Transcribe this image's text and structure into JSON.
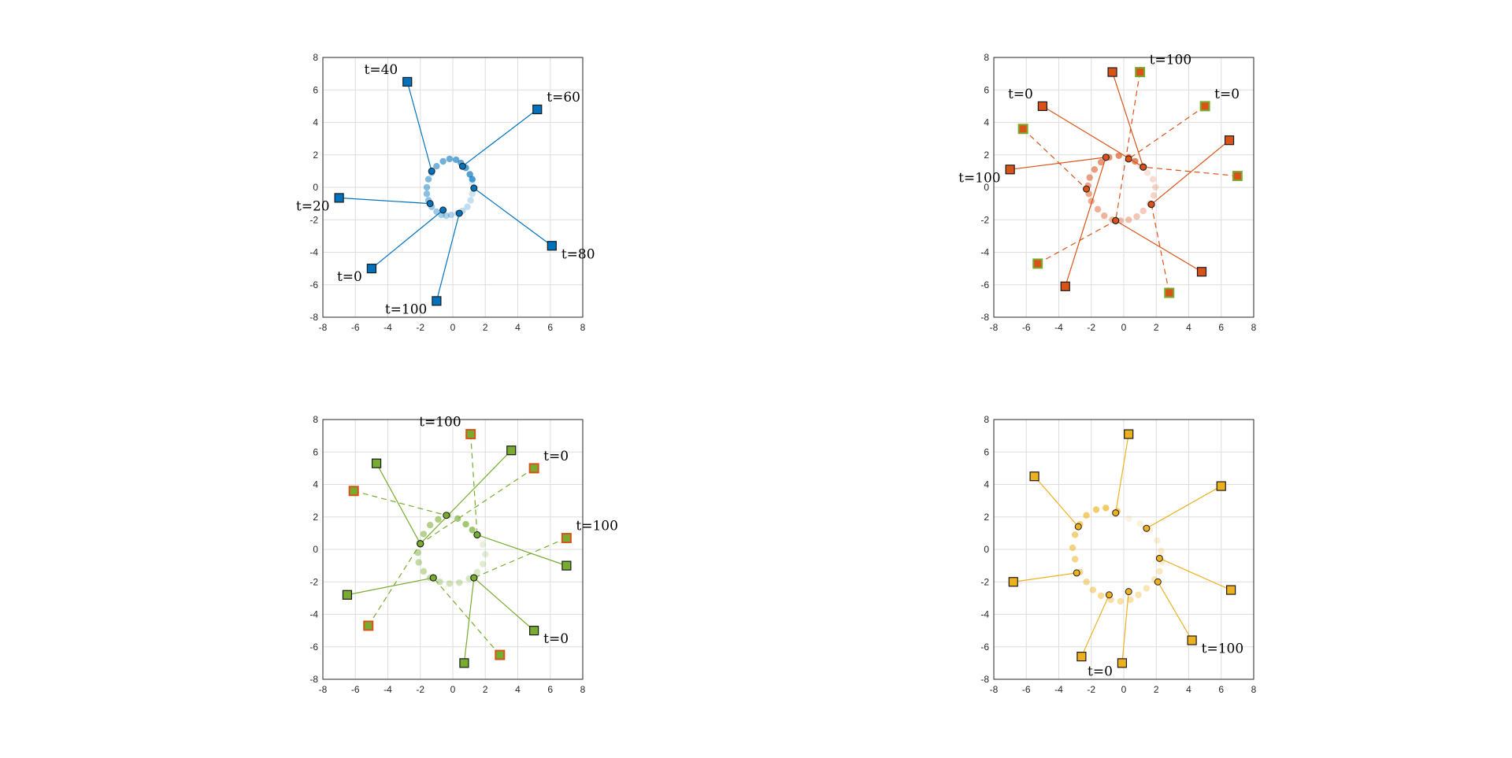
{
  "chart_data": [
    {
      "type": "scatter",
      "title": "",
      "xlabel": "",
      "ylabel": "",
      "xlim": [
        -8,
        8
      ],
      "ylim": [
        -8,
        8
      ],
      "xticks": [
        -8,
        -6,
        -4,
        -2,
        0,
        2,
        4,
        6,
        8
      ],
      "yticks": [
        -8,
        -6,
        -4,
        -2,
        0,
        2,
        4,
        6,
        8
      ],
      "grid": true,
      "color": "#0072BD",
      "trail": [
        [
          1.2,
          0.3
        ],
        [
          1.3,
          0.0
        ],
        [
          1.2,
          -0.4
        ],
        [
          1.1,
          -0.8
        ],
        [
          0.9,
          -1.2
        ],
        [
          0.6,
          -1.45
        ],
        [
          0.3,
          -1.6
        ],
        [
          -0.1,
          -1.7
        ],
        [
          -0.4,
          -1.75
        ],
        [
          -0.7,
          -1.7
        ],
        [
          -1.0,
          -1.5
        ],
        [
          -1.3,
          -1.2
        ],
        [
          -1.5,
          -0.8
        ],
        [
          -1.6,
          -0.4
        ],
        [
          -1.6,
          0.0
        ],
        [
          -1.5,
          0.5
        ],
        [
          -1.3,
          0.9
        ],
        [
          -1.0,
          1.3
        ],
        [
          -0.6,
          1.6
        ],
        [
          -0.2,
          1.75
        ],
        [
          0.2,
          1.7
        ],
        [
          0.5,
          1.5
        ],
        [
          0.8,
          1.2
        ],
        [
          1.05,
          0.8
        ],
        [
          1.2,
          0.5
        ]
      ],
      "links": [
        {
          "from": [
            -5.0,
            -5.0
          ],
          "to": [
            -0.6,
            -1.4
          ],
          "label": "t=0",
          "style": "solid"
        },
        {
          "from": [
            -7.0,
            -0.65
          ],
          "to": [
            -1.4,
            -1.0
          ],
          "label": "t=20",
          "style": "solid"
        },
        {
          "from": [
            -2.8,
            6.5
          ],
          "to": [
            -1.3,
            1.0
          ],
          "label": "t=40",
          "style": "solid"
        },
        {
          "from": [
            5.2,
            4.8
          ],
          "to": [
            0.6,
            1.3
          ],
          "label": "t=60",
          "style": "solid"
        },
        {
          "from": [
            6.1,
            -3.6
          ],
          "to": [
            1.3,
            -0.05
          ],
          "label": "t=80",
          "style": "solid"
        },
        {
          "from": [
            -1.0,
            -7.0
          ],
          "to": [
            0.4,
            -1.6
          ],
          "label": "t=100",
          "style": "solid"
        }
      ]
    },
    {
      "type": "scatter",
      "title": "",
      "xlabel": "",
      "ylabel": "",
      "xlim": [
        -8,
        8
      ],
      "ylim": [
        -8,
        8
      ],
      "xticks": [
        -8,
        -6,
        -4,
        -2,
        0,
        2,
        4,
        6,
        8
      ],
      "yticks": [
        -8,
        -6,
        -4,
        -2,
        0,
        2,
        4,
        6,
        8
      ],
      "grid": true,
      "color": "#D95319",
      "edge_color": "#77AC30",
      "trail": [
        [
          1.0,
          1.3
        ],
        [
          1.45,
          0.9
        ],
        [
          1.8,
          0.5
        ],
        [
          1.95,
          0.0
        ],
        [
          1.85,
          -0.5
        ],
        [
          1.6,
          -1.0
        ],
        [
          1.2,
          -1.45
        ],
        [
          0.8,
          -1.8
        ],
        [
          0.3,
          -2.0
        ],
        [
          -0.2,
          -2.05
        ],
        [
          -0.7,
          -2.0
        ],
        [
          -1.2,
          -1.75
        ],
        [
          -1.6,
          -1.35
        ],
        [
          -2.0,
          -0.85
        ],
        [
          -2.15,
          -0.4
        ],
        [
          -2.2,
          0.1
        ],
        [
          -2.1,
          0.6
        ],
        [
          -1.8,
          1.1
        ],
        [
          -1.4,
          1.55
        ],
        [
          -0.9,
          1.85
        ],
        [
          -0.3,
          1.95
        ],
        [
          0.3,
          1.85
        ],
        [
          0.7,
          1.6
        ]
      ],
      "links": [
        {
          "from": [
            -5.0,
            5.0
          ],
          "to": [
            1.2,
            1.25
          ],
          "label": "t=0",
          "style": "solid"
        },
        {
          "from": [
            -7.0,
            1.1
          ],
          "to": [
            -1.1,
            1.85
          ],
          "label": "t=100",
          "style": "solid"
        },
        {
          "from": [
            -0.7,
            7.1
          ],
          "to": [
            1.2,
            1.25
          ],
          "label": "",
          "style": "solid"
        },
        {
          "from": [
            6.5,
            2.9
          ],
          "to": [
            1.7,
            -1.05
          ],
          "label": "",
          "style": "solid"
        },
        {
          "from": [
            4.8,
            -5.2
          ],
          "to": [
            -0.5,
            -2.05
          ],
          "label": "",
          "style": "solid"
        },
        {
          "from": [
            -3.6,
            -6.1
          ],
          "to": [
            -1.1,
            1.85
          ],
          "label": "",
          "style": "solid"
        },
        {
          "from": [
            5.0,
            5.0
          ],
          "to": [
            0.3,
            1.75
          ],
          "label": "t=0",
          "style": "dashed",
          "marker": "edge"
        },
        {
          "from": [
            1.0,
            7.1
          ],
          "to": [
            -0.5,
            -2.05
          ],
          "label": "t=100",
          "style": "dashed",
          "marker": "edge"
        },
        {
          "from": [
            -6.2,
            3.6
          ],
          "to": [
            -2.3,
            -0.1
          ],
          "label": "",
          "style": "dashed",
          "marker": "edge"
        },
        {
          "from": [
            7.0,
            0.7
          ],
          "to": [
            1.2,
            1.25
          ],
          "label": "",
          "style": "dashed",
          "marker": "edge"
        },
        {
          "from": [
            2.8,
            -6.5
          ],
          "to": [
            1.7,
            -1.05
          ],
          "label": "",
          "style": "dashed",
          "marker": "edge"
        },
        {
          "from": [
            -5.3,
            -4.7
          ],
          "to": [
            -0.5,
            -2.05
          ],
          "label": "",
          "style": "dashed",
          "marker": "edge"
        }
      ]
    },
    {
      "type": "scatter",
      "title": "",
      "xlabel": "",
      "ylabel": "",
      "xlim": [
        -8,
        8
      ],
      "ylim": [
        -8,
        8
      ],
      "xticks": [
        -8,
        -6,
        -4,
        -2,
        0,
        2,
        4,
        6,
        8
      ],
      "yticks": [
        -8,
        -6,
        -4,
        -2,
        0,
        2,
        4,
        6,
        8
      ],
      "grid": true,
      "color": "#77AC30",
      "edge_color": "#D95319",
      "trail": [
        [
          1.4,
          0.9
        ],
        [
          1.85,
          0.3
        ],
        [
          2.0,
          -0.3
        ],
        [
          1.85,
          -0.9
        ],
        [
          1.5,
          -1.4
        ],
        [
          1.0,
          -1.8
        ],
        [
          0.4,
          -2.05
        ],
        [
          -0.2,
          -2.1
        ],
        [
          -0.8,
          -2.0
        ],
        [
          -1.4,
          -1.75
        ],
        [
          -1.8,
          -1.35
        ],
        [
          -2.1,
          -0.8
        ],
        [
          -2.15,
          -0.2
        ],
        [
          -2.05,
          0.4
        ],
        [
          -1.8,
          0.95
        ],
        [
          -1.4,
          1.5
        ],
        [
          -0.9,
          1.85
        ],
        [
          -0.3,
          2.1
        ],
        [
          0.3,
          1.9
        ],
        [
          0.8,
          1.55
        ],
        [
          1.2,
          1.2
        ]
      ],
      "links": [
        {
          "from": [
            5.0,
            -5.0
          ],
          "to": [
            1.3,
            -1.75
          ],
          "label": "t=0",
          "style": "solid"
        },
        {
          "from": [
            -4.7,
            5.3
          ],
          "to": [
            -2.0,
            0.35
          ],
          "label": "",
          "style": "solid"
        },
        {
          "from": [
            3.6,
            6.1
          ],
          "to": [
            -2.0,
            0.35
          ],
          "label": "",
          "style": "solid"
        },
        {
          "from": [
            7.0,
            -1.0
          ],
          "to": [
            1.5,
            0.9
          ],
          "label": "",
          "style": "solid"
        },
        {
          "from": [
            -6.5,
            -2.8
          ],
          "to": [
            -1.2,
            -1.75
          ],
          "label": "",
          "style": "solid"
        },
        {
          "from": [
            0.7,
            -7.0
          ],
          "to": [
            1.3,
            -1.75
          ],
          "label": "",
          "style": "solid"
        },
        {
          "from": [
            5.0,
            5.0
          ],
          "to": [
            -2.0,
            0.35
          ],
          "label": "t=0",
          "style": "dashed",
          "marker": "edge"
        },
        {
          "from": [
            1.1,
            7.1
          ],
          "to": [
            1.5,
            0.9
          ],
          "label": "t=100",
          "style": "dashed",
          "marker": "edge"
        },
        {
          "from": [
            7.0,
            0.7
          ],
          "to": [
            1.3,
            -1.75
          ],
          "label": "t=100",
          "style": "dashed",
          "marker": "edge"
        },
        {
          "from": [
            -6.1,
            3.6
          ],
          "to": [
            -0.4,
            2.1
          ],
          "label": "",
          "style": "dashed",
          "marker": "edge"
        },
        {
          "from": [
            -5.2,
            -4.7
          ],
          "to": [
            -2.0,
            0.35
          ],
          "label": "",
          "style": "dashed",
          "marker": "edge"
        },
        {
          "from": [
            2.9,
            -6.5
          ],
          "to": [
            -1.2,
            -1.75
          ],
          "label": "",
          "style": "dashed",
          "marker": "edge"
        }
      ]
    },
    {
      "type": "scatter",
      "title": "",
      "xlabel": "",
      "ylabel": "",
      "xlim": [
        -8,
        8
      ],
      "ylim": [
        -8,
        8
      ],
      "xticks": [
        -8,
        -6,
        -4,
        -2,
        0,
        2,
        4,
        6,
        8
      ],
      "yticks": [
        -8,
        -6,
        -4,
        -2,
        0,
        2,
        4,
        6,
        8
      ],
      "grid": true,
      "color": "#EDB120",
      "trail": [
        [
          0.3,
          1.9
        ],
        [
          1.0,
          1.6
        ],
        [
          1.6,
          1.2
        ],
        [
          2.05,
          0.55
        ],
        [
          2.3,
          -0.1
        ],
        [
          2.35,
          -0.75
        ],
        [
          2.2,
          -1.35
        ],
        [
          1.9,
          -1.85
        ],
        [
          1.4,
          -2.4
        ],
        [
          0.9,
          -2.8
        ],
        [
          0.4,
          -3.1
        ],
        [
          -0.2,
          -3.2
        ],
        [
          -0.8,
          -3.1
        ],
        [
          -1.4,
          -2.85
        ],
        [
          -1.9,
          -2.5
        ],
        [
          -2.3,
          -2.0
        ],
        [
          -2.7,
          -1.4
        ],
        [
          -3.0,
          -0.6
        ],
        [
          -3.15,
          0.1
        ],
        [
          -3.0,
          0.9
        ],
        [
          -2.7,
          1.55
        ],
        [
          -2.3,
          2.1
        ],
        [
          -1.7,
          2.45
        ],
        [
          -1.1,
          2.55
        ],
        [
          -0.4,
          2.35
        ]
      ],
      "links": [
        {
          "from": [
            -0.1,
            -7.0
          ],
          "to": [
            0.3,
            -2.6
          ],
          "label": "t=0",
          "style": "solid"
        },
        {
          "from": [
            4.2,
            -5.6
          ],
          "to": [
            2.1,
            -2.0
          ],
          "label": "t=100",
          "style": "solid"
        },
        {
          "from": [
            -5.5,
            4.5
          ],
          "to": [
            -2.8,
            1.4
          ],
          "label": "",
          "style": "solid"
        },
        {
          "from": [
            0.3,
            7.1
          ],
          "to": [
            -0.5,
            2.25
          ],
          "label": "",
          "style": "solid"
        },
        {
          "from": [
            6.0,
            3.9
          ],
          "to": [
            1.4,
            1.3
          ],
          "label": "",
          "style": "solid"
        },
        {
          "from": [
            6.6,
            -2.5
          ],
          "to": [
            2.2,
            -0.55
          ],
          "label": "",
          "style": "solid"
        },
        {
          "from": [
            -6.8,
            -2.0
          ],
          "to": [
            -2.9,
            -1.45
          ],
          "label": "",
          "style": "solid"
        },
        {
          "from": [
            -2.6,
            -6.6
          ],
          "to": [
            -0.9,
            -2.8
          ],
          "label": "",
          "style": "solid"
        }
      ]
    }
  ]
}
